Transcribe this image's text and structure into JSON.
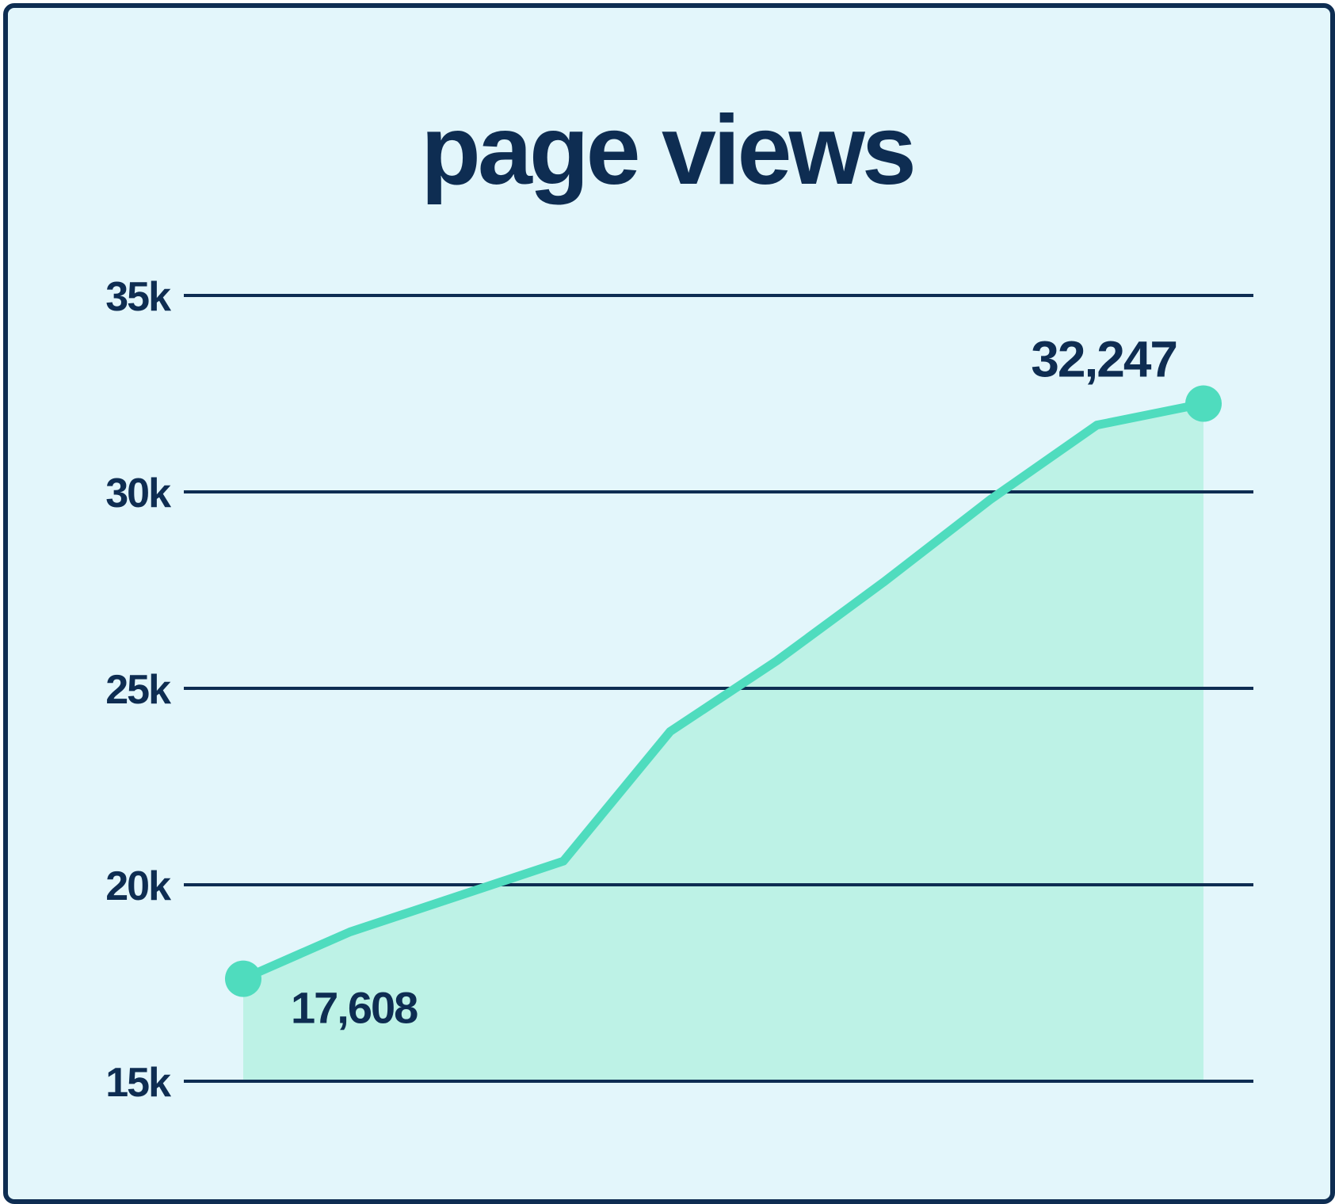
{
  "chart_data": {
    "type": "area",
    "title": "page views",
    "xlabel": "",
    "ylabel": "",
    "ylim": [
      15000,
      35000
    ],
    "y_ticks": [
      {
        "value": 35000,
        "label": "35k"
      },
      {
        "value": 30000,
        "label": "30k"
      },
      {
        "value": 25000,
        "label": "25k"
      },
      {
        "value": 20000,
        "label": "20k"
      },
      {
        "value": 15000,
        "label": "15k"
      }
    ],
    "grid": true,
    "series": [
      {
        "values": [
          17608,
          18800,
          19700,
          20600,
          23900,
          25700,
          27700,
          29800,
          31700,
          32247
        ]
      }
    ],
    "annotations": [
      {
        "point_index": 0,
        "label": "17,608"
      },
      {
        "point_index": 9,
        "label": "32,247"
      }
    ]
  },
  "colors": {
    "text": "#0e2d52",
    "line": "#4fdcbe",
    "fill": "#bdf2e6",
    "background": "#e3f6fb",
    "border": "#0e2d52"
  }
}
